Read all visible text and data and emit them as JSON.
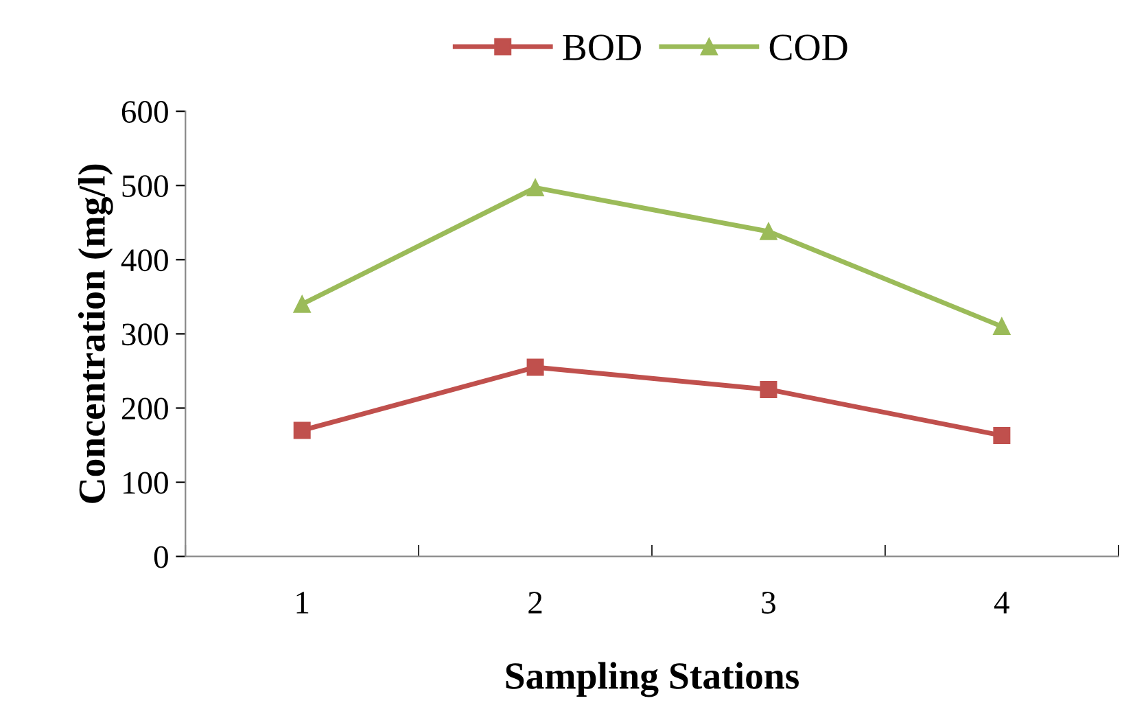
{
  "chart_data": {
    "type": "line",
    "xlabel": "Sampling Stations",
    "ylabel": "Concentration (mg/l)",
    "categories": [
      "1",
      "2",
      "3",
      "4"
    ],
    "series": [
      {
        "name": "BOD",
        "color": "#c0504d",
        "marker": "square",
        "values": [
          170,
          255,
          225,
          163
        ]
      },
      {
        "name": "COD",
        "color": "#9bbb59",
        "marker": "triangle",
        "values": [
          340,
          497,
          438,
          310
        ]
      }
    ],
    "ylim": [
      0,
      600
    ],
    "yticks": [
      0,
      100,
      200,
      300,
      400,
      500,
      600
    ],
    "grid": false,
    "legend": "top",
    "line_style": "solid"
  }
}
